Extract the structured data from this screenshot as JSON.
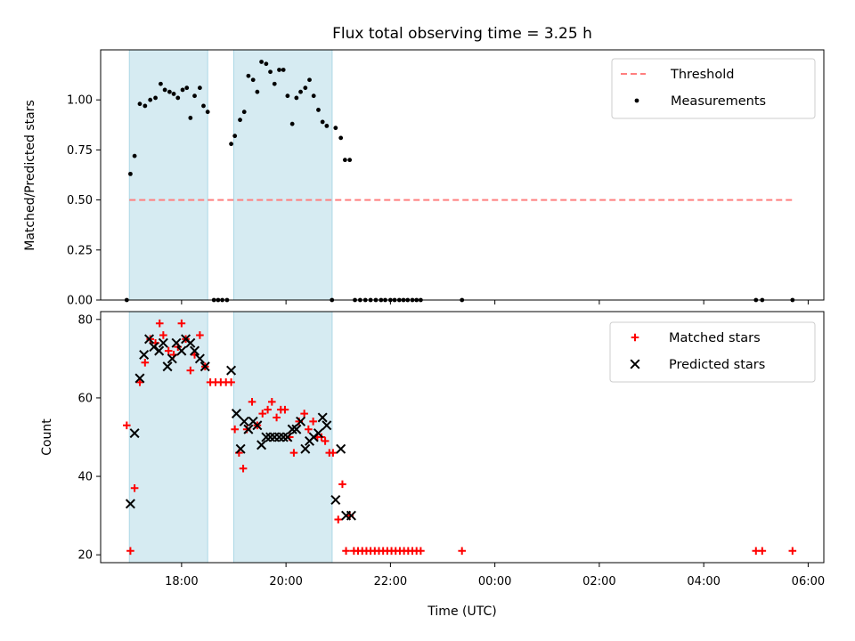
{
  "chart_data": [
    {
      "type": "scatter",
      "title": "Flux total observing time = 3.25 h",
      "ylabel": "Matched/Predicted stars",
      "ylim": [
        0,
        1.25
      ],
      "xlim_hours": [
        16.45,
        30.3
      ],
      "yticks": [
        0.0,
        0.25,
        0.5,
        0.75,
        1.0
      ],
      "ytick_labels": [
        "0.00",
        "0.25",
        "0.50",
        "0.75",
        "1.00"
      ],
      "shaded_intervals": [
        [
          "17:00",
          "18:30"
        ],
        [
          "19:00",
          "20:53"
        ]
      ],
      "shade_color": "#add8e6",
      "legend_position": "upper right",
      "threshold": {
        "name": "Threshold",
        "value": 0.5,
        "x_from": "17:00",
        "x_to": "29:42",
        "color": "#ff7f7f"
      },
      "series": [
        {
          "name": "Measurements",
          "marker": "dot",
          "color": "#000000",
          "points": [
            [
              16.95,
              0.0
            ],
            [
              17.02,
              0.63
            ],
            [
              17.1,
              0.72
            ],
            [
              17.2,
              0.98
            ],
            [
              17.3,
              0.97
            ],
            [
              17.4,
              1.0
            ],
            [
              17.5,
              1.01
            ],
            [
              17.6,
              1.08
            ],
            [
              17.68,
              1.05
            ],
            [
              17.77,
              1.04
            ],
            [
              17.85,
              1.03
            ],
            [
              17.93,
              1.01
            ],
            [
              18.02,
              1.05
            ],
            [
              18.1,
              1.06
            ],
            [
              18.17,
              0.91
            ],
            [
              18.25,
              1.02
            ],
            [
              18.35,
              1.06
            ],
            [
              18.42,
              0.97
            ],
            [
              18.5,
              0.94
            ],
            [
              18.62,
              0.0
            ],
            [
              18.7,
              0.0
            ],
            [
              18.78,
              0.0
            ],
            [
              18.87,
              0.0
            ],
            [
              18.95,
              0.78
            ],
            [
              19.02,
              0.82
            ],
            [
              19.12,
              0.9
            ],
            [
              19.2,
              0.94
            ],
            [
              19.28,
              1.12
            ],
            [
              19.37,
              1.1
            ],
            [
              19.45,
              1.04
            ],
            [
              19.53,
              1.19
            ],
            [
              19.62,
              1.18
            ],
            [
              19.7,
              1.14
            ],
            [
              19.78,
              1.08
            ],
            [
              19.87,
              1.15
            ],
            [
              19.95,
              1.15
            ],
            [
              20.03,
              1.02
            ],
            [
              20.12,
              0.88
            ],
            [
              20.2,
              1.01
            ],
            [
              20.28,
              1.04
            ],
            [
              20.37,
              1.06
            ],
            [
              20.45,
              1.1
            ],
            [
              20.53,
              1.02
            ],
            [
              20.62,
              0.95
            ],
            [
              20.7,
              0.89
            ],
            [
              20.78,
              0.87
            ],
            [
              20.88,
              0.0
            ],
            [
              20.95,
              0.86
            ],
            [
              21.05,
              0.81
            ],
            [
              21.13,
              0.7
            ],
            [
              21.22,
              0.7
            ],
            [
              21.32,
              0.0
            ],
            [
              21.42,
              0.0
            ],
            [
              21.52,
              0.0
            ],
            [
              21.62,
              0.0
            ],
            [
              21.72,
              0.0
            ],
            [
              21.82,
              0.0
            ],
            [
              21.9,
              0.0
            ],
            [
              22.0,
              0.0
            ],
            [
              22.08,
              0.0
            ],
            [
              22.17,
              0.0
            ],
            [
              22.25,
              0.0
            ],
            [
              22.33,
              0.0
            ],
            [
              22.42,
              0.0
            ],
            [
              22.5,
              0.0
            ],
            [
              22.58,
              0.0
            ],
            [
              23.37,
              0.0
            ],
            [
              29.0,
              0.0
            ],
            [
              29.12,
              0.0
            ],
            [
              29.7,
              0.0
            ]
          ]
        }
      ]
    },
    {
      "type": "scatter",
      "xlabel": "Time (UTC)",
      "ylabel": "Count",
      "ylim": [
        18,
        82
      ],
      "xlim_hours": [
        16.45,
        30.3
      ],
      "yticks": [
        20,
        40,
        60,
        80
      ],
      "ytick_labels": [
        "20",
        "40",
        "60",
        "80"
      ],
      "xticks_hours": [
        18,
        20,
        22,
        24,
        26,
        28,
        30
      ],
      "xtick_labels": [
        "18:00",
        "20:00",
        "22:00",
        "00:00",
        "02:00",
        "04:00",
        "06:00"
      ],
      "shaded_intervals": [
        [
          "17:00",
          "18:30"
        ],
        [
          "19:00",
          "20:53"
        ]
      ],
      "shade_color": "#add8e6",
      "legend_position": "upper right",
      "series": [
        {
          "name": "Matched stars",
          "marker": "plus",
          "color": "#ff0000",
          "points": [
            [
              16.95,
              53
            ],
            [
              17.02,
              21
            ],
            [
              17.1,
              37
            ],
            [
              17.2,
              64
            ],
            [
              17.3,
              69
            ],
            [
              17.4,
              75
            ],
            [
              17.5,
              74
            ],
            [
              17.58,
              79
            ],
            [
              17.65,
              76
            ],
            [
              17.75,
              72
            ],
            [
              17.85,
              71
            ],
            [
              17.93,
              73
            ],
            [
              18.0,
              79
            ],
            [
              18.08,
              75
            ],
            [
              18.17,
              67
            ],
            [
              18.25,
              71
            ],
            [
              18.35,
              76
            ],
            [
              18.45,
              68
            ],
            [
              18.55,
              64
            ],
            [
              18.65,
              64
            ],
            [
              18.75,
              64
            ],
            [
              18.85,
              64
            ],
            [
              18.95,
              64
            ],
            [
              19.02,
              52
            ],
            [
              19.1,
              46
            ],
            [
              19.18,
              42
            ],
            [
              19.25,
              52
            ],
            [
              19.35,
              59
            ],
            [
              19.45,
              53
            ],
            [
              19.55,
              56
            ],
            [
              19.65,
              57
            ],
            [
              19.73,
              59
            ],
            [
              19.82,
              55
            ],
            [
              19.9,
              57
            ],
            [
              19.98,
              57
            ],
            [
              20.07,
              50
            ],
            [
              20.15,
              46
            ],
            [
              20.25,
              54
            ],
            [
              20.35,
              56
            ],
            [
              20.43,
              52
            ],
            [
              20.52,
              54
            ],
            [
              20.6,
              50
            ],
            [
              20.68,
              50
            ],
            [
              20.75,
              49
            ],
            [
              20.83,
              46
            ],
            [
              20.9,
              46
            ],
            [
              21.0,
              29
            ],
            [
              21.08,
              38
            ],
            [
              21.15,
              21
            ],
            [
              21.22,
              30
            ],
            [
              21.3,
              21
            ],
            [
              21.38,
              21
            ],
            [
              21.46,
              21
            ],
            [
              21.54,
              21
            ],
            [
              21.62,
              21
            ],
            [
              21.7,
              21
            ],
            [
              21.78,
              21
            ],
            [
              21.86,
              21
            ],
            [
              21.94,
              21
            ],
            [
              22.02,
              21
            ],
            [
              22.1,
              21
            ],
            [
              22.18,
              21
            ],
            [
              22.26,
              21
            ],
            [
              22.34,
              21
            ],
            [
              22.42,
              21
            ],
            [
              22.5,
              21
            ],
            [
              22.58,
              21
            ],
            [
              23.37,
              21
            ],
            [
              29.0,
              21
            ],
            [
              29.12,
              21
            ],
            [
              29.7,
              21
            ]
          ]
        },
        {
          "name": "Predicted stars",
          "marker": "x",
          "color": "#000000",
          "points": [
            [
              17.02,
              33
            ],
            [
              17.1,
              51
            ],
            [
              17.2,
              65
            ],
            [
              17.28,
              71
            ],
            [
              17.38,
              75
            ],
            [
              17.47,
              73
            ],
            [
              17.57,
              72
            ],
            [
              17.65,
              74
            ],
            [
              17.73,
              68
            ],
            [
              17.82,
              70
            ],
            [
              17.9,
              74
            ],
            [
              18.0,
              72
            ],
            [
              18.08,
              75
            ],
            [
              18.17,
              74
            ],
            [
              18.25,
              72
            ],
            [
              18.35,
              70
            ],
            [
              18.45,
              68
            ],
            [
              18.95,
              67
            ],
            [
              19.05,
              56
            ],
            [
              19.13,
              47
            ],
            [
              19.2,
              54
            ],
            [
              19.28,
              52
            ],
            [
              19.37,
              54
            ],
            [
              19.45,
              53
            ],
            [
              19.53,
              48
            ],
            [
              19.62,
              50
            ],
            [
              19.7,
              50
            ],
            [
              19.78,
              50
            ],
            [
              19.87,
              50
            ],
            [
              19.95,
              50
            ],
            [
              20.03,
              50
            ],
            [
              20.12,
              52
            ],
            [
              20.2,
              52
            ],
            [
              20.28,
              54
            ],
            [
              20.37,
              47
            ],
            [
              20.45,
              49
            ],
            [
              20.53,
              50
            ],
            [
              20.62,
              51
            ],
            [
              20.7,
              55
            ],
            [
              20.78,
              53
            ],
            [
              20.95,
              34
            ],
            [
              21.05,
              47
            ],
            [
              21.15,
              30
            ],
            [
              21.25,
              30
            ]
          ]
        }
      ]
    }
  ]
}
